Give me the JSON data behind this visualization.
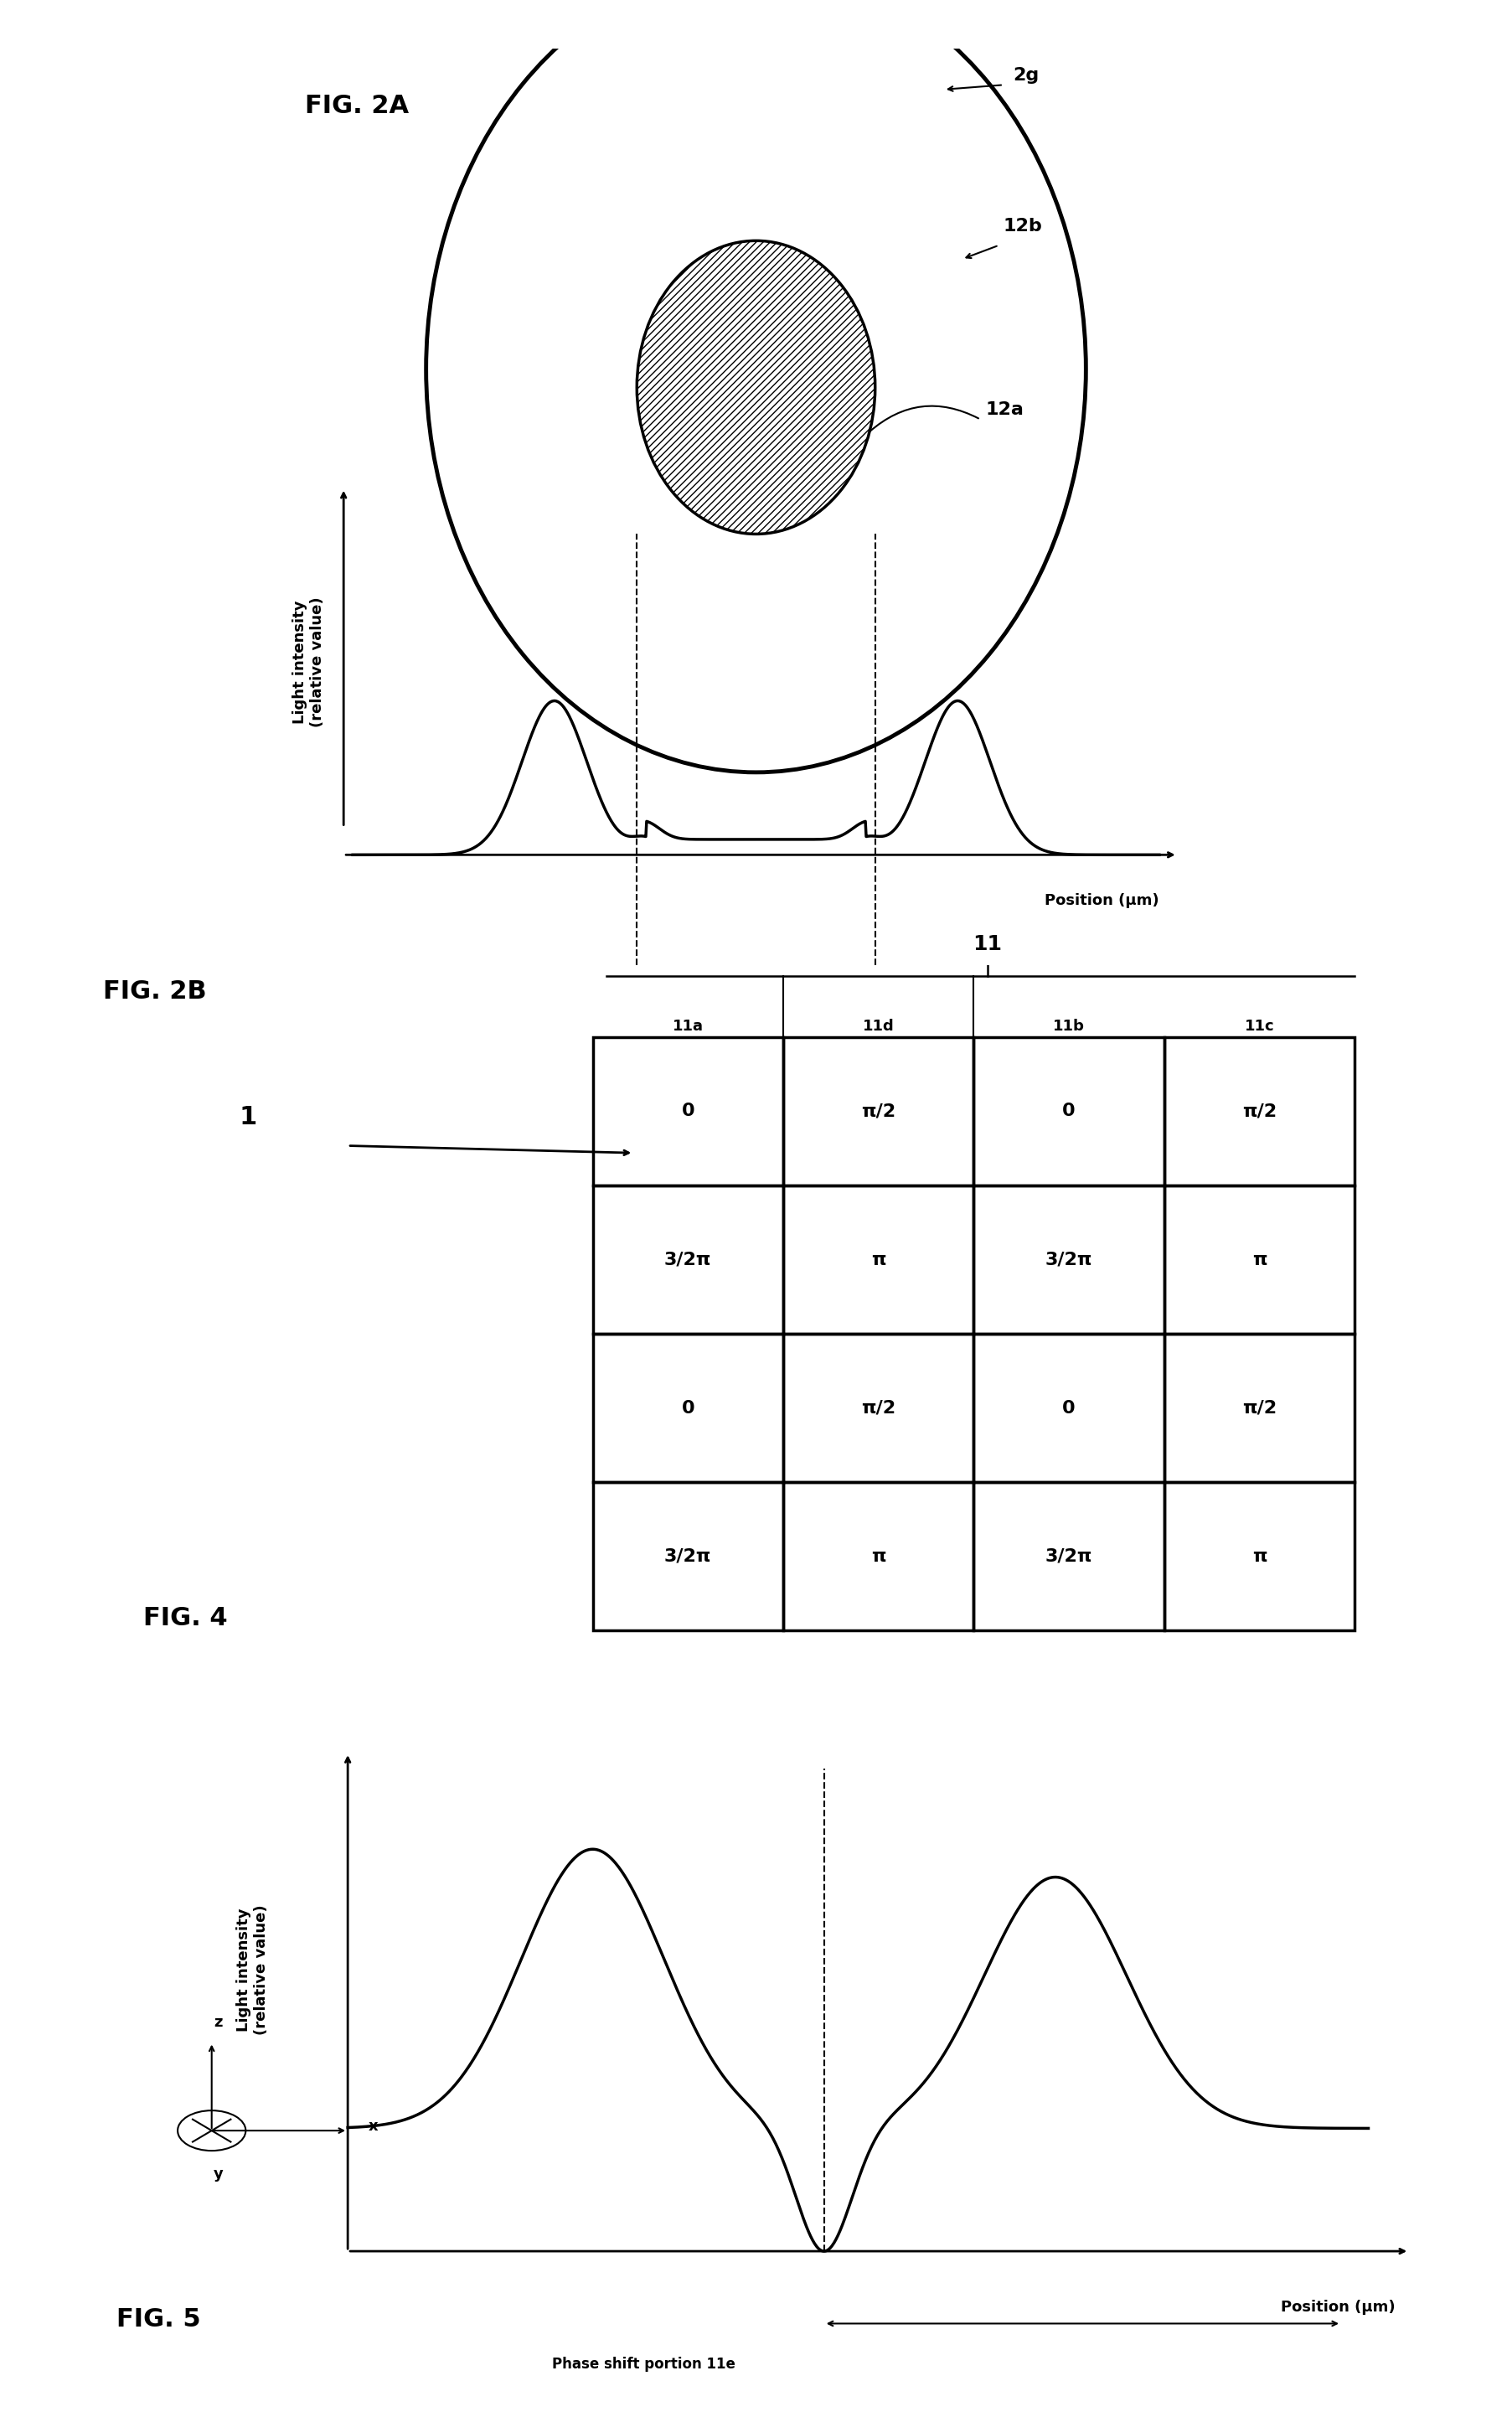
{
  "bg_color": "#ffffff",
  "line_color": "#000000",
  "fig_width": 18.05,
  "fig_height": 28.79,
  "fig2a_label": "FIG. 2A",
  "fig2b_label": "FIG. 2B",
  "fig4_label": "FIG. 4",
  "fig5_label": "FIG. 5",
  "label_2g": "2g",
  "label_12b": "12b",
  "label_12a": "12a",
  "label_11": "11",
  "label_11a": "11a",
  "label_11b": "11b",
  "label_11c": "11c",
  "label_11d": "11d",
  "label_1": "1",
  "ylabel_light": "Light intensity\n(relative value)",
  "xlabel_pos": "Position (μm)",
  "phase_shift_label": "Phase shift portion 11e",
  "grid_cells": [
    [
      "0",
      "π/2",
      "0",
      "π/2"
    ],
    [
      "3/2π",
      "π",
      "3/2π",
      "π"
    ],
    [
      "0",
      "π/2",
      "0",
      "π/2"
    ],
    [
      "3/2π",
      "π",
      "3/2π",
      "π"
    ]
  ]
}
